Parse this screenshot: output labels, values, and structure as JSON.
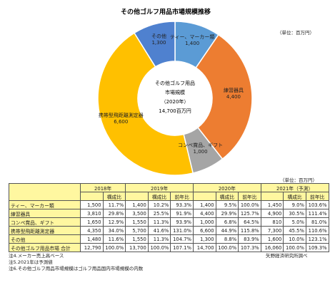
{
  "chart_data": {
    "type": "pie",
    "donut": true,
    "title": "その他ゴルフ用品市場規模推移",
    "unit": "（単位：百万円）",
    "center_label": [
      "その他ゴルフ用品",
      "市場規模",
      "（2020年）",
      "14,700百万円"
    ],
    "categories": [
      "ティー、マーカー類",
      "練習器具",
      "コンペ賞品、ギフト",
      "携帯型飛距離測定器",
      "その他"
    ],
    "values": [
      1400,
      4400,
      1000,
      6600,
      1300
    ],
    "value_labels": [
      "1,400",
      "4,400",
      "1,000",
      "6,600",
      "1,300"
    ],
    "colors": [
      "#5b9bd5",
      "#ed7d31",
      "#a5a5a5",
      "#ffc000",
      "#4f81cf"
    ]
  },
  "table": {
    "unit": "（単位：百万円）",
    "years": [
      "2018年",
      "2019年",
      "2020年",
      "2021年（予測）"
    ],
    "share_label": "構成比",
    "yoy_label": "前年比",
    "rows": [
      [
        "ティー、マーカー類",
        "1,500",
        "11.7%",
        "1,400",
        "10.2%",
        "93.3%",
        "1,400",
        "9.5%",
        "100.0%",
        "1,450",
        "9.0%",
        "103.6%"
      ],
      [
        "練習器具",
        "3,810",
        "29.8%",
        "3,500",
        "25.5%",
        "91.9%",
        "4,400",
        "29.9%",
        "125.7%",
        "4,900",
        "30.5%",
        "111.4%"
      ],
      [
        "コンペ賞品、ギフト",
        "1,650",
        "12.9%",
        "1,550",
        "11.3%",
        "93.9%",
        "1,000",
        "6.8%",
        "64.5%",
        "810",
        "5.0%",
        "81.0%"
      ],
      [
        "携帯型飛距離測定器",
        "4,350",
        "34.0%",
        "5,700",
        "41.6%",
        "131.0%",
        "6,600",
        "44.9%",
        "115.8%",
        "7,300",
        "45.5%",
        "110.6%"
      ],
      [
        "その他",
        "1,480",
        "11.6%",
        "1,550",
        "11.3%",
        "104.7%",
        "1,300",
        "8.8%",
        "83.9%",
        "1,600",
        "10.0%",
        "123.1%"
      ],
      [
        "その他ゴルフ用品市場 合計",
        "12,790",
        "100.0%",
        "13,700",
        "100.0%",
        "107.1%",
        "14,700",
        "100.0%",
        "107.3%",
        "16,060",
        "100.0%",
        "109.3%"
      ]
    ]
  },
  "notes": [
    "注4.メーカー売上高ベース",
    "注5.2021年は予測値",
    "注6.その他ゴルフ用品市場規模はゴルフ用品国内市場規模の内数"
  ],
  "source": "矢野経済研究所調べ"
}
